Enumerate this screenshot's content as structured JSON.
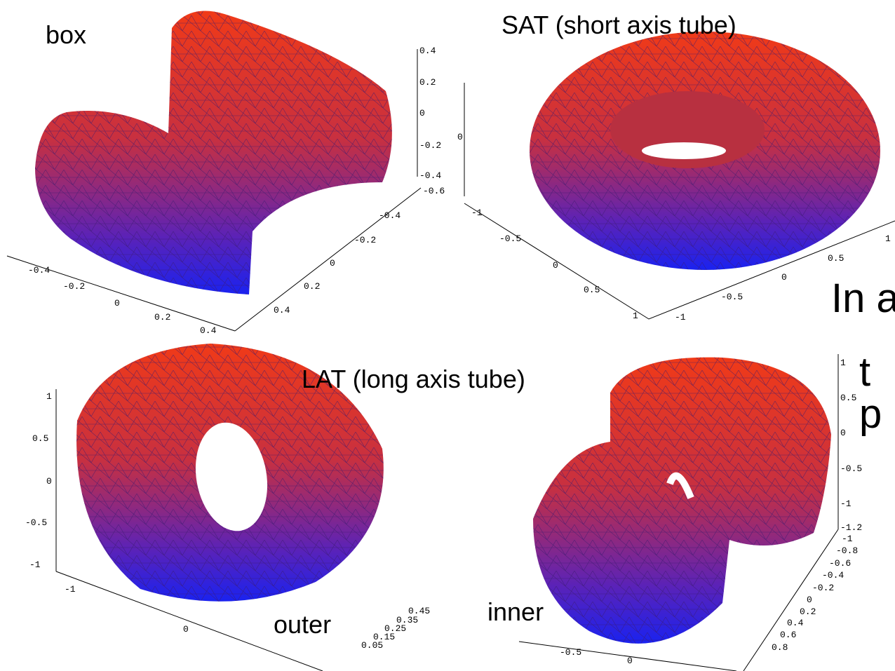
{
  "slide": {
    "side_text": [
      "In a",
      "t",
      "p"
    ],
    "panels": [
      {
        "title": "box",
        "ticks": [
          "0.4",
          "0.2",
          "0",
          "-0.2",
          "-0.4",
          "-0.6",
          "-0.4",
          "-0.2",
          "0",
          "0.2",
          "0.4",
          "-0.4",
          "-0.2",
          "0",
          "0.2",
          "0.4"
        ]
      },
      {
        "title": "SAT (short axis tube)",
        "ticks": [
          "0",
          "-1",
          "-0.5",
          "0",
          "0.5",
          "1",
          "-1",
          "-0.5",
          "0",
          "0.5",
          "1"
        ]
      },
      {
        "title": "LAT (long axis tube)",
        "ticks": [
          "1",
          "0.5",
          "0",
          "-0.5",
          "-1",
          "-1",
          "0",
          "0.45",
          "0.35",
          "0.25",
          "0.15",
          "0.05"
        ]
      },
      {
        "title": "outer",
        "ticks": []
      },
      {
        "title": "inner",
        "ticks": [
          "1",
          "0.5",
          "0",
          "-0.5",
          "-1",
          "-1.2",
          "-1",
          "-0.8",
          "-0.6",
          "-0.4",
          "-0.2",
          "0",
          "0.2",
          "0.4",
          "0.6",
          "0.8",
          "-0.5",
          "0"
        ]
      }
    ]
  }
}
